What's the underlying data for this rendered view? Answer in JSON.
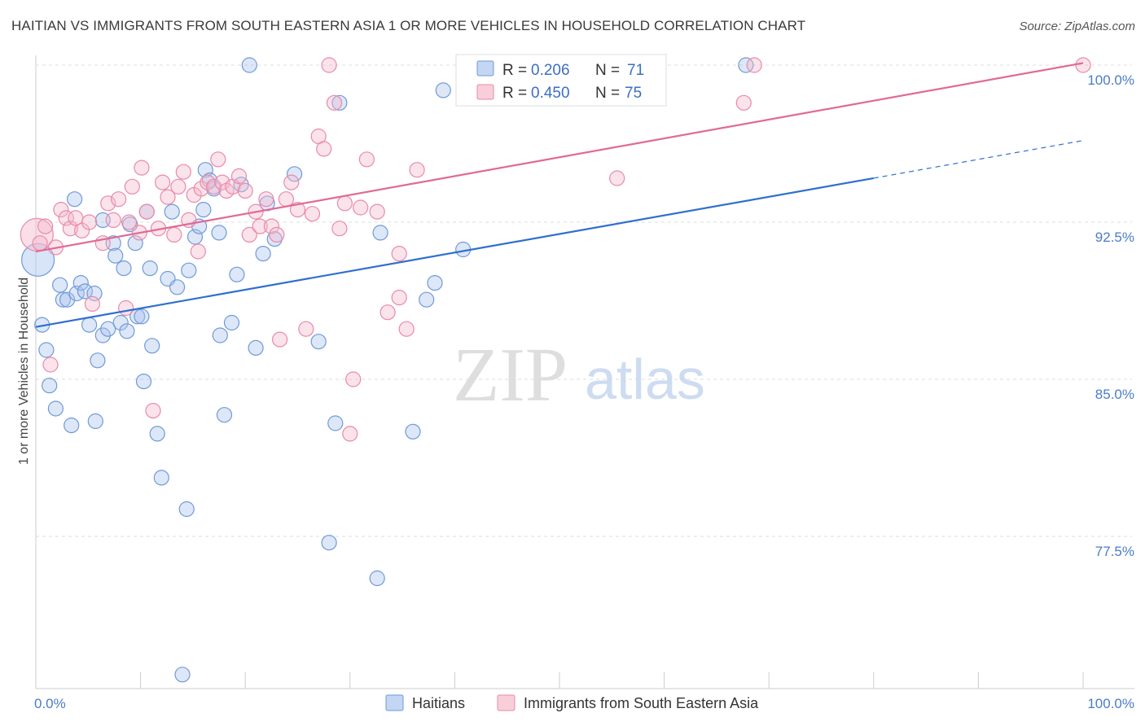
{
  "title": "HAITIAN VS IMMIGRANTS FROM SOUTH EASTERN ASIA 1 OR MORE VEHICLES IN HOUSEHOLD CORRELATION CHART",
  "source": "Source: ZipAtlas.com",
  "watermark": {
    "zip": "ZIP",
    "atlas": "atlas"
  },
  "colors": {
    "blue_fill": "#a9c4ee",
    "blue_stroke": "#6f9ad8",
    "blue_line": "#2f6fcf",
    "pink_fill": "#f6b9cc",
    "pink_stroke": "#e98aa8",
    "pink_line": "#e06a95",
    "grid": "#dddddd",
    "tick_label": "#4a7cc9"
  },
  "legend": {
    "r_label": "R =",
    "n_label": "N =",
    "rows": [
      {
        "series": "Haitians",
        "r": "0.206",
        "n": "71"
      },
      {
        "series": "Immigrants from South Eastern Asia",
        "r": "0.450",
        "n": "75"
      }
    ]
  },
  "chart_data": {
    "type": "scatter",
    "ylabel": "1 or more Vehicles in Household",
    "xlabel": "",
    "xlim": [
      0,
      100
    ],
    "ylim": [
      70.5,
      101.0
    ],
    "x_tick_labels": [
      "0.0%",
      "100.0%"
    ],
    "y_ticks": [
      77.5,
      85.0,
      92.5,
      100.0
    ],
    "y_tick_labels": [
      "77.5%",
      "85.0%",
      "92.5%",
      "100.0%"
    ],
    "grid": true,
    "legend_placement": "top-center",
    "series": [
      {
        "name": "Haitians",
        "color": "#a9c4ee",
        "trend": {
          "x": [
            0,
            80
          ],
          "y": [
            87.5,
            94.6
          ],
          "dashed_to": [
            100,
            96.4
          ]
        },
        "points": [
          [
            0.2,
            90.7
          ],
          [
            0.6,
            87.6
          ],
          [
            1.0,
            86.4
          ],
          [
            1.3,
            84.7
          ],
          [
            1.9,
            83.6
          ],
          [
            2.3,
            89.5
          ],
          [
            2.6,
            88.8
          ],
          [
            3.0,
            88.8
          ],
          [
            3.4,
            82.8
          ],
          [
            3.7,
            93.6
          ],
          [
            3.9,
            89.1
          ],
          [
            4.3,
            89.6
          ],
          [
            4.7,
            89.2
          ],
          [
            5.1,
            87.6
          ],
          [
            5.6,
            89.1
          ],
          [
            5.7,
            83.0
          ],
          [
            5.9,
            85.9
          ],
          [
            6.4,
            87.1
          ],
          [
            6.9,
            87.4
          ],
          [
            6.4,
            92.6
          ],
          [
            7.4,
            91.5
          ],
          [
            7.6,
            90.9
          ],
          [
            8.1,
            87.7
          ],
          [
            8.4,
            90.3
          ],
          [
            8.7,
            87.3
          ],
          [
            9.0,
            92.4
          ],
          [
            9.5,
            91.5
          ],
          [
            9.7,
            88.0
          ],
          [
            10.1,
            88.0
          ],
          [
            10.3,
            84.9
          ],
          [
            10.6,
            93.0
          ],
          [
            10.9,
            90.3
          ],
          [
            11.1,
            86.6
          ],
          [
            11.6,
            82.4
          ],
          [
            12.0,
            80.3
          ],
          [
            12.6,
            89.8
          ],
          [
            13.0,
            93.0
          ],
          [
            13.5,
            89.4
          ],
          [
            14.0,
            70.9
          ],
          [
            14.4,
            78.8
          ],
          [
            14.6,
            90.2
          ],
          [
            15.2,
            91.8
          ],
          [
            15.6,
            92.3
          ],
          [
            16.0,
            93.1
          ],
          [
            16.2,
            95.0
          ],
          [
            16.6,
            94.5
          ],
          [
            17.0,
            94.1
          ],
          [
            17.5,
            92.0
          ],
          [
            17.6,
            87.1
          ],
          [
            18.0,
            83.3
          ],
          [
            18.7,
            87.7
          ],
          [
            19.2,
            90.0
          ],
          [
            19.6,
            94.3
          ],
          [
            20.4,
            100.0
          ],
          [
            21.0,
            86.5
          ],
          [
            21.7,
            91.0
          ],
          [
            22.1,
            93.4
          ],
          [
            22.8,
            91.7
          ],
          [
            24.7,
            94.8
          ],
          [
            27.0,
            86.8
          ],
          [
            28.0,
            77.2
          ],
          [
            28.6,
            82.9
          ],
          [
            29.0,
            98.2
          ],
          [
            32.6,
            75.5
          ],
          [
            32.9,
            92.0
          ],
          [
            36.0,
            82.5
          ],
          [
            37.3,
            88.8
          ],
          [
            38.1,
            89.6
          ],
          [
            38.9,
            98.8
          ],
          [
            40.8,
            91.2
          ],
          [
            67.8,
            100.0
          ]
        ]
      },
      {
        "name": "Immigrants from South Eastern Asia",
        "color": "#f6b9cc",
        "trend": {
          "x": [
            0,
            100
          ],
          "y": [
            91.1,
            100.1
          ]
        },
        "points": [
          [
            0.1,
            91.9
          ],
          [
            0.4,
            91.5
          ],
          [
            0.9,
            92.3
          ],
          [
            1.4,
            85.7
          ],
          [
            1.9,
            91.3
          ],
          [
            2.4,
            93.1
          ],
          [
            2.9,
            92.7
          ],
          [
            3.3,
            92.2
          ],
          [
            3.8,
            92.7
          ],
          [
            4.4,
            92.1
          ],
          [
            5.1,
            92.5
          ],
          [
            5.4,
            88.6
          ],
          [
            6.4,
            91.5
          ],
          [
            6.9,
            93.4
          ],
          [
            7.4,
            92.6
          ],
          [
            7.9,
            93.6
          ],
          [
            8.6,
            88.4
          ],
          [
            8.9,
            92.5
          ],
          [
            9.2,
            94.2
          ],
          [
            9.9,
            92.0
          ],
          [
            10.1,
            95.1
          ],
          [
            10.6,
            93.0
          ],
          [
            11.2,
            83.5
          ],
          [
            11.7,
            92.2
          ],
          [
            12.1,
            94.4
          ],
          [
            12.6,
            93.7
          ],
          [
            13.2,
            91.9
          ],
          [
            13.6,
            94.2
          ],
          [
            14.1,
            94.9
          ],
          [
            14.6,
            92.6
          ],
          [
            15.1,
            93.8
          ],
          [
            15.5,
            91.1
          ],
          [
            15.8,
            94.1
          ],
          [
            16.4,
            94.4
          ],
          [
            17.0,
            94.2
          ],
          [
            17.4,
            95.5
          ],
          [
            17.8,
            94.4
          ],
          [
            18.2,
            94.0
          ],
          [
            18.8,
            94.2
          ],
          [
            19.4,
            94.7
          ],
          [
            20.0,
            94.0
          ],
          [
            20.4,
            91.9
          ],
          [
            21.0,
            93.0
          ],
          [
            21.4,
            92.3
          ],
          [
            22.0,
            93.6
          ],
          [
            22.5,
            92.3
          ],
          [
            23.0,
            91.9
          ],
          [
            23.3,
            86.9
          ],
          [
            23.9,
            93.6
          ],
          [
            24.4,
            94.4
          ],
          [
            25.0,
            93.1
          ],
          [
            25.8,
            87.4
          ],
          [
            26.4,
            92.9
          ],
          [
            27.0,
            96.6
          ],
          [
            27.5,
            96.0
          ],
          [
            28.0,
            100.0
          ],
          [
            28.5,
            98.2
          ],
          [
            29.0,
            92.2
          ],
          [
            29.5,
            93.4
          ],
          [
            30.0,
            82.4
          ],
          [
            30.3,
            85.0
          ],
          [
            31.0,
            93.2
          ],
          [
            31.6,
            95.5
          ],
          [
            32.6,
            93.0
          ],
          [
            33.6,
            88.2
          ],
          [
            34.7,
            91.0
          ],
          [
            34.7,
            88.9
          ],
          [
            35.4,
            87.4
          ],
          [
            36.4,
            95.0
          ],
          [
            50.5,
            100.0
          ],
          [
            52.8,
            100.0
          ],
          [
            55.5,
            94.6
          ],
          [
            67.6,
            98.2
          ],
          [
            68.6,
            100.0
          ],
          [
            100.0,
            100.0
          ]
        ]
      }
    ]
  }
}
